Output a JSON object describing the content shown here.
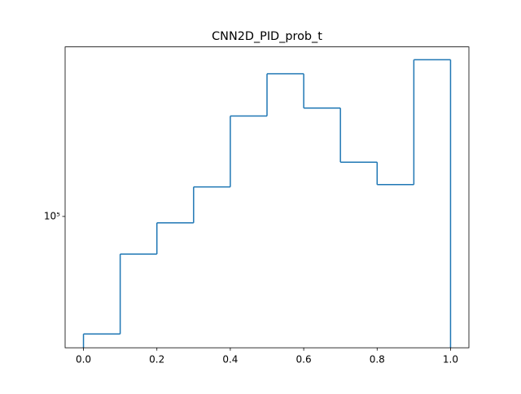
{
  "chart_data": {
    "type": "histogram",
    "title": "CNN2D_PID_prob_t",
    "bins": [
      0.0,
      0.1,
      0.2,
      0.3,
      0.4,
      0.5,
      0.6,
      0.7,
      0.8,
      0.9,
      1.0
    ],
    "counts": [
      32100,
      69500,
      94000,
      133000,
      264000,
      397000,
      285000,
      169000,
      136000,
      455000
    ],
    "color": "#1f77b4",
    "histtype": "step",
    "yscale": "log",
    "xlim": [
      -0.05,
      1.05
    ],
    "xticks": [
      {
        "value": 0.0,
        "label": "0.0"
      },
      0.2,
      0.4,
      0.6,
      0.8,
      {
        "value": 1.0,
        "label": "1.0"
      }
    ],
    "ylim": [
      28100,
      515000
    ],
    "yticks": [
      {
        "value": 100000,
        "label": "10⁵"
      }
    ]
  }
}
